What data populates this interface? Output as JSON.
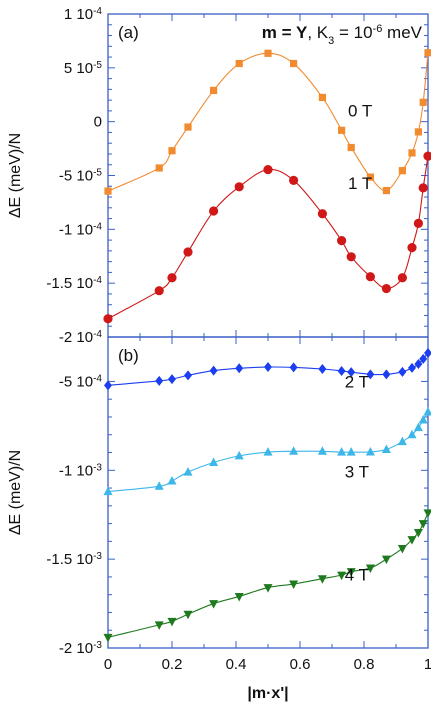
{
  "chart_data": [
    {
      "type": "line",
      "panel_label": "(a)",
      "title_parts": {
        "bold": "m = Y",
        "rest": ", K",
        "sub": "3",
        "mid": " = 10",
        "sup": "-6",
        "unit": " meV"
      },
      "xlabel": "|m·x'|",
      "ylabel": "ΔE (meV)/N",
      "xlim": [
        0,
        1
      ],
      "ylim": [
        -0.0002,
        0.0001
      ],
      "yticks": [
        {
          "v": 0.0001,
          "mant": "1 10",
          "exp": "-4"
        },
        {
          "v": 5e-05,
          "mant": "5 10",
          "exp": "-5"
        },
        {
          "v": 0,
          "mant": "0",
          "exp": ""
        },
        {
          "v": -5e-05,
          "mant": "-5 10",
          "exp": "-5"
        },
        {
          "v": -0.0001,
          "mant": "-1 10",
          "exp": "-4"
        },
        {
          "v": -0.00015,
          "mant": "-1.5 10",
          "exp": "-4"
        },
        {
          "v": -0.0002,
          "mant": "-2 10",
          "exp": "-4"
        }
      ],
      "series": [
        {
          "name": "0 T",
          "color": "#f28a30",
          "marker": "square",
          "x": [
            0,
            0.16,
            0.2,
            0.25,
            0.33,
            0.41,
            0.5,
            0.58,
            0.67,
            0.73,
            0.76,
            0.82,
            0.87,
            0.92,
            0.95,
            0.97,
            0.985,
            1.0
          ],
          "y": [
            -6.45e-05,
            -4.3e-05,
            -2.7e-05,
            -5e-06,
            2.9e-05,
            5.4e-05,
            6.35e-05,
            5.4e-05,
            2.25e-05,
            -8e-06,
            -2.4e-05,
            -5.15e-05,
            -6.4e-05,
            -4.55e-05,
            -2.9e-05,
            -9.5e-06,
            1.8e-05,
            6.4e-05
          ],
          "label_at": [
            0.75,
            5e-06
          ]
        },
        {
          "name": "1 T",
          "color": "#d01818",
          "marker": "circle",
          "x": [
            0,
            0.16,
            0.2,
            0.25,
            0.33,
            0.41,
            0.5,
            0.58,
            0.67,
            0.73,
            0.76,
            0.82,
            0.87,
            0.92,
            0.95,
            0.97,
            0.985,
            1.0
          ],
          "y": [
            -0.000183,
            -0.000157,
            -0.000145,
            -0.000121,
            -8.3e-05,
            -6.05e-05,
            -4.45e-05,
            -5.45e-05,
            -8.55e-05,
            -0.0001105,
            -0.0001255,
            -0.000144,
            -0.000155,
            -0.000145,
            -0.000117,
            -9.45e-05,
            -6.15e-05,
            -3.2e-05
          ],
          "label_at": [
            0.75,
            -6.25e-05
          ]
        }
      ]
    },
    {
      "type": "line",
      "panel_label": "(b)",
      "xlabel": "|m·x'|",
      "ylabel": "ΔE (meV)/N",
      "xlim": [
        0,
        1
      ],
      "ylim": [
        -0.002,
        -0.00025
      ],
      "xticks": [
        "0",
        "0.2",
        "0.4",
        "0.6",
        "0.8",
        "1"
      ],
      "yticks": [
        {
          "v": -0.0005,
          "mant": "-5 10",
          "exp": "-4"
        },
        {
          "v": -0.001,
          "mant": "-1 10",
          "exp": "-3"
        },
        {
          "v": -0.0015,
          "mant": "-1.5 10",
          "exp": "-3"
        },
        {
          "v": -0.002,
          "mant": "-2 10",
          "exp": "-3"
        }
      ],
      "series": [
        {
          "name": "2 T",
          "color": "#1a3ef0",
          "marker": "diamond",
          "x": [
            0,
            0.16,
            0.2,
            0.25,
            0.33,
            0.41,
            0.5,
            0.58,
            0.67,
            0.73,
            0.76,
            0.82,
            0.87,
            0.92,
            0.95,
            0.97,
            0.985,
            1.0
          ],
          "y": [
            -0.000522,
            -0.000497,
            -0.000487,
            -0.000466,
            -0.000439,
            -0.000426,
            -0.000419,
            -0.000421,
            -0.00043,
            -0.000441,
            -0.000448,
            -0.00046,
            -0.00046,
            -0.000446,
            -0.000424,
            -0.000402,
            -0.000373,
            -0.00034
          ],
          "label_at": [
            0.74,
            -0.000535
          ]
        },
        {
          "name": "3 T",
          "color": "#3db6ea",
          "marker": "triangle",
          "x": [
            0,
            0.16,
            0.2,
            0.25,
            0.33,
            0.41,
            0.5,
            0.58,
            0.67,
            0.73,
            0.76,
            0.82,
            0.87,
            0.92,
            0.95,
            0.97,
            0.985,
            1.0
          ],
          "y": [
            -0.00112,
            -0.00109,
            -0.00106,
            -0.00101,
            -0.000956,
            -0.000919,
            -0.000898,
            -0.000893,
            -0.000893,
            -0.000898,
            -0.000898,
            -0.000897,
            -0.000883,
            -0.000839,
            -0.0008,
            -0.00076,
            -0.000717,
            -0.000672
          ],
          "label_at": [
            0.74,
            -0.00104
          ]
        },
        {
          "name": "4 T",
          "color": "#1f7a1f",
          "marker": "triangle-down",
          "x": [
            0,
            0.16,
            0.2,
            0.25,
            0.33,
            0.41,
            0.5,
            0.58,
            0.67,
            0.73,
            0.76,
            0.82,
            0.87,
            0.92,
            0.95,
            0.97,
            0.985,
            1.0
          ],
          "y": [
            -0.00194,
            -0.00187,
            -0.00185,
            -0.00181,
            -0.00175,
            -0.00171,
            -0.00166,
            -0.00164,
            -0.00161,
            -0.00159,
            -0.00157,
            -0.00155,
            -0.0015,
            -0.00144,
            -0.00139,
            -0.00135,
            -0.0013,
            -0.00124
          ],
          "label_at": [
            0.74,
            -0.00162
          ]
        }
      ]
    }
  ]
}
